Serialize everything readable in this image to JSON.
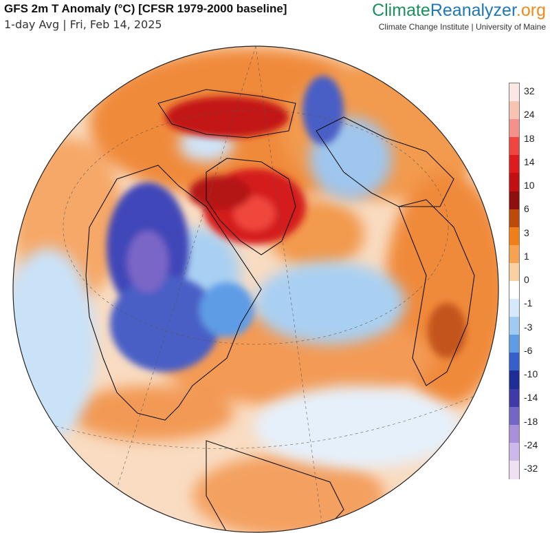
{
  "header": {
    "title": "GFS 2m T Anomaly (°C) [CFSR 1979-2000 baseline]",
    "subtitle": "1-day Avg | Fri, Feb 14, 2025"
  },
  "brand": {
    "logo_part1": "Climate",
    "logo_part2": "Reanalyzer",
    "logo_part3": ".org",
    "tagline": "Climate Change Institute | University of Maine"
  },
  "legend": {
    "labels": [
      "32",
      "24",
      "18",
      "14",
      "10",
      "6",
      "3",
      "1",
      "0",
      "-1",
      "-3",
      "-6",
      "-10",
      "-14",
      "-18",
      "-24",
      "-32"
    ],
    "colors": [
      "#fde7e4",
      "#f9c3b2",
      "#f5908a",
      "#f0463e",
      "#e01b1b",
      "#c30f0f",
      "#8f0f0f",
      "#bd4a0a",
      "#f07f1a",
      "#f6a24e",
      "#fbd1a2",
      "#ffffff",
      "#d6e9fb",
      "#9fcbf3",
      "#5f9ce6",
      "#3660c9",
      "#1f2d96",
      "#3e3aa8",
      "#7466c6",
      "#a890da",
      "#cdb8ea",
      "#f0e0f2"
    ]
  },
  "map": {
    "type": "orthographic globe, 2m temperature anomaly",
    "colors": {
      "ocean_base": "#f7d9bf",
      "warm": "#f08a3a",
      "hot": "#d41a1a",
      "cold": "#3a3fb0",
      "cool": "#9cc8ee",
      "coastline": "#111111"
    }
  }
}
